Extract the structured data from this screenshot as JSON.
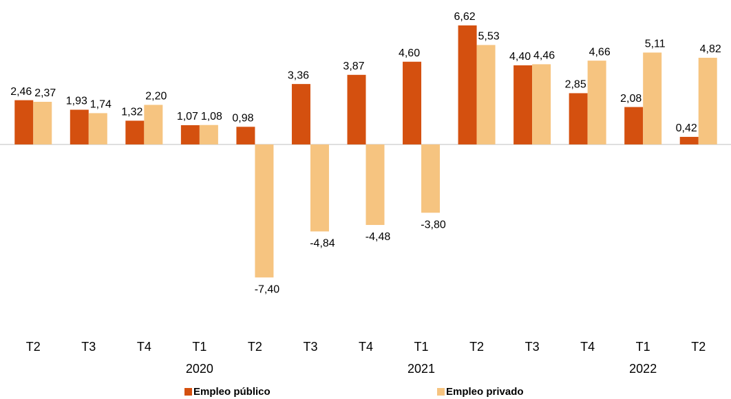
{
  "chart_data": {
    "type": "bar",
    "categories": [
      "T2",
      "T3",
      "T4",
      "T1",
      "T2",
      "T3",
      "T4",
      "T1",
      "T2",
      "T3",
      "T4",
      "T1",
      "T2"
    ],
    "years": [
      null,
      null,
      null,
      "2020",
      null,
      null,
      null,
      "2021",
      null,
      null,
      null,
      "2022",
      null
    ],
    "series": [
      {
        "name": "Empleo público",
        "color": "#d4500f",
        "values": [
          2.46,
          1.93,
          1.32,
          1.07,
          0.98,
          3.36,
          3.87,
          4.6,
          6.62,
          4.4,
          2.85,
          2.08,
          0.42
        ],
        "value_labels": [
          "2,46",
          "1,93",
          "1,32",
          "1,07",
          "0,98",
          "3,36",
          "3,87",
          "4,60",
          "6,62",
          "4,40",
          "2,85",
          "2,08",
          "0,42"
        ]
      },
      {
        "name": "Empleo privado",
        "color": "#f6c480",
        "values": [
          2.37,
          1.74,
          2.2,
          1.08,
          -7.4,
          -4.84,
          -4.48,
          -3.8,
          5.53,
          4.46,
          4.66,
          5.11,
          4.82
        ],
        "value_labels": [
          "2,37",
          "1,74",
          "2,20",
          "1,08",
          "-7,40",
          "-4,84",
          "-4,48",
          "-3,80",
          "5,53",
          "4,46",
          "4,66",
          "5,11",
          "4,82"
        ]
      }
    ],
    "ylim": [
      -8,
      7
    ],
    "grid": false
  }
}
